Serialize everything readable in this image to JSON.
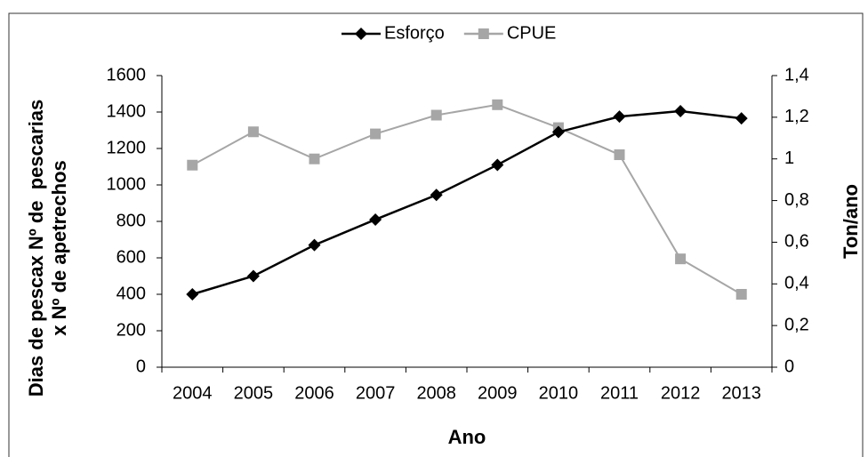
{
  "chart_data": {
    "type": "line",
    "categories": [
      "2004",
      "2005",
      "2006",
      "2007",
      "2008",
      "2009",
      "2010",
      "2011",
      "2012",
      "2013"
    ],
    "series": [
      {
        "name": "Esforço",
        "color": "#000000",
        "marker": "diamond",
        "values": [
          400,
          500,
          670,
          810,
          945,
          1110,
          1290,
          1375,
          1405,
          1365
        ]
      },
      {
        "name": "CPUE",
        "color": "#a6a6a6",
        "marker": "square",
        "axis": "y2",
        "values": [
          0.97,
          1.13,
          1.0,
          1.12,
          1.21,
          1.26,
          1.15,
          1.02,
          0.52,
          0.35
        ]
      }
    ],
    "ylim": [
      0,
      1600
    ],
    "yticks": [
      0,
      200,
      400,
      600,
      800,
      1000,
      1200,
      1400,
      1600
    ],
    "y2lim": [
      0,
      1.4
    ],
    "y2ticks": [
      0,
      {
        "value": 0.2,
        "label": "0,2"
      },
      {
        "value": 0.4,
        "label": "0,4"
      },
      {
        "value": 0.6,
        "label": "0,6"
      },
      {
        "value": 0.8,
        "label": "0,8"
      },
      1,
      {
        "value": 1.2,
        "label": "1,2"
      },
      {
        "value": 1.4,
        "label": "1,4"
      }
    ],
    "x_label": "Ano",
    "y_label": [
      "Dias de pescax Nº de  pescarias",
      "x Nº de apetrechos"
    ],
    "y2_label": "Ton/ano",
    "legend": "top"
  }
}
